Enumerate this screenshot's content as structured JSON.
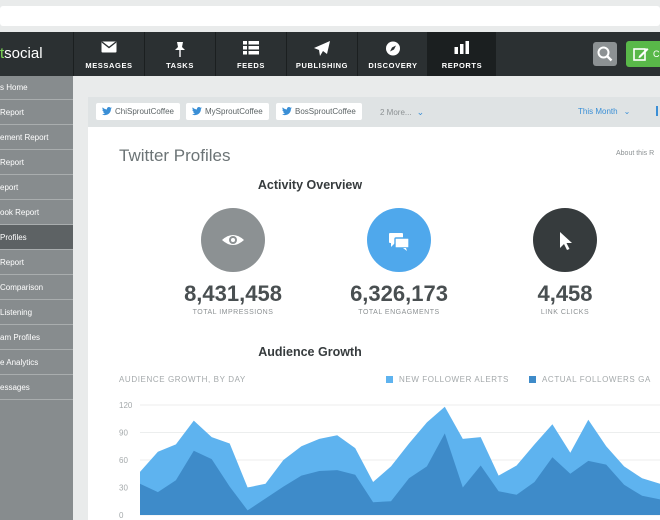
{
  "nav": {
    "logo_prefix": "t",
    "logo_text": "social",
    "items": [
      {
        "label": "MESSAGES",
        "icon": "envelope-icon"
      },
      {
        "label": "TASKS",
        "icon": "pin-icon"
      },
      {
        "label": "FEEDS",
        "icon": "list-icon"
      },
      {
        "label": "PUBLISHING",
        "icon": "paper-plane-icon"
      },
      {
        "label": "DISCOVERY",
        "icon": "compass-icon"
      },
      {
        "label": "REPORTS",
        "icon": "bar-chart-icon"
      }
    ],
    "active": "REPORTS",
    "compose_label": "C"
  },
  "sidebar": {
    "items": [
      {
        "label": "s Home"
      },
      {
        "label": "Report"
      },
      {
        "label": "ement Report"
      },
      {
        "label": "Report"
      },
      {
        "label": "eport"
      },
      {
        "label": "ook Report"
      },
      {
        "label": "Profiles"
      },
      {
        "label": "Report"
      },
      {
        "label": "Comparison"
      },
      {
        "label": "Listening"
      },
      {
        "label": "am Profiles"
      },
      {
        "label": "e Analytics"
      },
      {
        "label": "essages"
      }
    ],
    "active_index": 6
  },
  "filters": {
    "profiles": [
      "ChiSproutCoffee",
      "MySproutCoffee",
      "BosSproutCoffee"
    ],
    "more_label": "2 More...",
    "period_label": "This Month"
  },
  "page": {
    "title": "Twitter Profiles",
    "about_label": "About this R"
  },
  "activity": {
    "title": "Activity Overview",
    "metrics": [
      {
        "value": "8,431,458",
        "label": "TOTAL IMPRESSIONS",
        "icon": "eye-icon",
        "color": "#8c9193"
      },
      {
        "value": "6,326,173",
        "label": "TOTAL ENGAGMENTS",
        "icon": "chat-bubbles-icon",
        "color": "#4fa8ec"
      },
      {
        "value": "4,458",
        "label": "LINK CLICKS",
        "icon": "cursor-icon",
        "color": "#363b3d"
      }
    ]
  },
  "audience": {
    "title": "Audience Growth",
    "subtitle": "AUDIENCE GROWTH, BY DAY"
  },
  "colors": {
    "nav_bg": "#2b3032",
    "accent_blue": "#3a8fd6",
    "series_light": "#5eb3ef",
    "series_dark": "#3e8bc9",
    "green": "#59b849"
  },
  "chart_data": {
    "type": "area",
    "ylim": [
      0,
      120
    ],
    "yticks": [
      0,
      30,
      60,
      90,
      120
    ],
    "tick_labels": [
      "0",
      "30",
      "60",
      "90",
      "120"
    ],
    "series": [
      {
        "name": "NEW FOLLOWER ALERTS",
        "values": [
          47,
          69,
          77,
          103,
          85,
          78,
          30,
          34,
          60,
          75,
          83,
          87,
          73,
          36,
          53,
          78,
          101,
          118,
          83,
          85,
          43,
          54,
          77,
          99,
          68,
          104,
          75,
          53,
          40,
          34
        ]
      },
      {
        "name": "ACTUAL FOLLOWERS GA",
        "values": [
          34,
          25,
          38,
          70,
          61,
          31,
          5,
          18,
          31,
          43,
          48,
          49,
          44,
          14,
          15,
          40,
          53,
          89,
          30,
          54,
          26,
          22,
          36,
          63,
          45,
          59,
          55,
          33,
          21,
          17
        ]
      }
    ]
  }
}
